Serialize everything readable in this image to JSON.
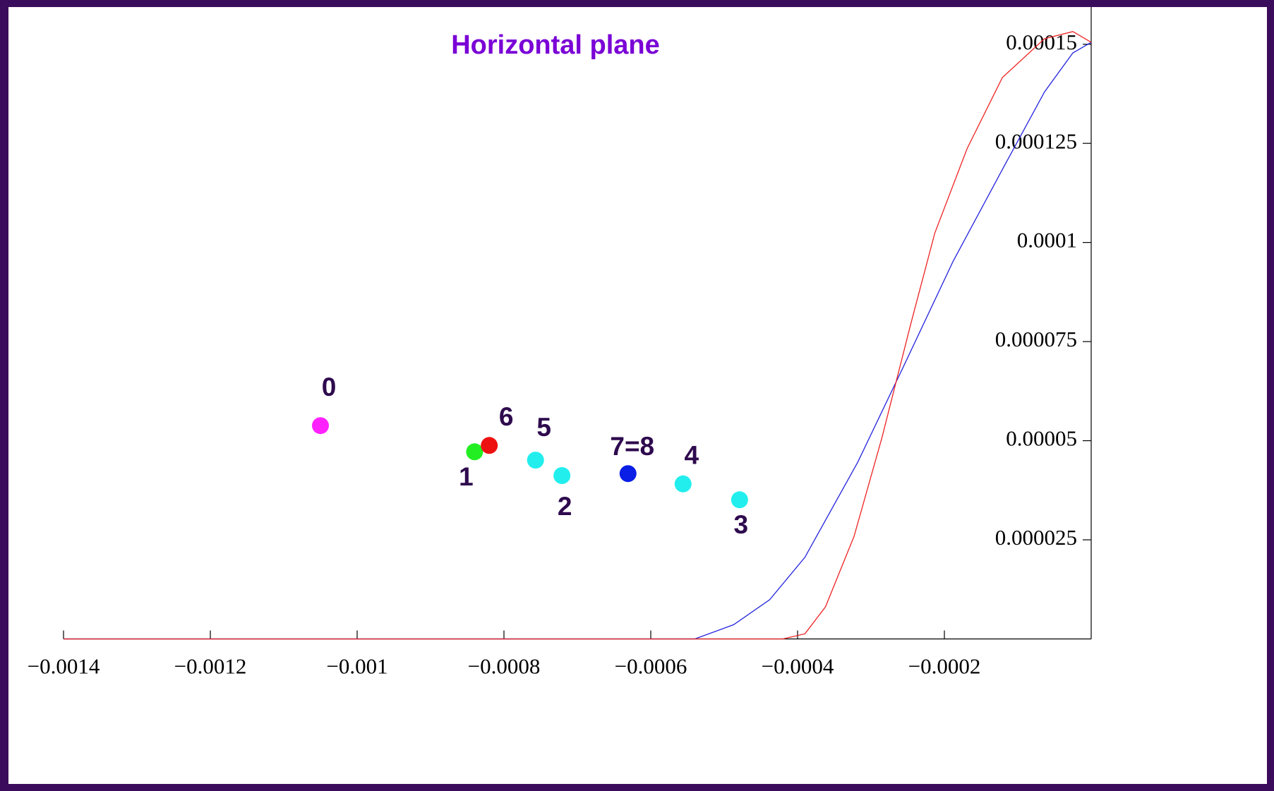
{
  "chart_data": {
    "type": "scatter",
    "title": "Horizontal plane",
    "xlim": [
      -0.0014,
      0
    ],
    "ylim": [
      0,
      0.00016
    ],
    "xticks": [
      {
        "value": -0.0014,
        "label": "−0.0014"
      },
      {
        "value": -0.0012,
        "label": "−0.0012"
      },
      {
        "value": -0.001,
        "label": "−0.001"
      },
      {
        "value": -0.0008,
        "label": "−0.0008"
      },
      {
        "value": -0.0006,
        "label": "−0.0006"
      },
      {
        "value": -0.0004,
        "label": "−0.0004"
      },
      {
        "value": -0.0002,
        "label": "−0.0002"
      }
    ],
    "yticks": [
      2.5e-05,
      5e-05,
      7.5e-05,
      0.0001,
      0.000125,
      0.00015
    ],
    "points": {
      "labels": [
        "0",
        "1",
        "6",
        "5",
        "2",
        "7=8",
        "4",
        "3"
      ],
      "colors": [
        "#ff22ff",
        "#22ee22",
        "#ee1111",
        "#22eeee",
        "#22eeee",
        "#0a1ee6",
        "#22eeee",
        "#22eeee"
      ],
      "x": [
        -0.00105,
        -0.00084,
        -0.00082,
        -0.000757,
        -0.000721,
        -0.000631,
        -0.000556,
        -0.000479
      ],
      "y": [
        5.38e-05,
        4.72e-05,
        4.88e-05,
        4.51e-05,
        4.12e-05,
        4.17e-05,
        3.91e-05,
        3.51e-05
      ]
    },
    "series": [
      {
        "color": "#2222dd",
        "x": [
          -0.0014,
          -0.00054,
          -0.000487,
          -0.000438,
          -0.00039,
          -0.000318,
          -0.000256,
          -0.000188,
          -0.000121,
          -6.35e-05,
          -2.5e-05,
          0
        ],
        "values": [
          0,
          0,
          3.6e-06,
          9.9e-06,
          2.06e-05,
          4.46e-05,
          6.86e-05,
          9.53e-05,
          0.0001184,
          0.000138,
          0.0001478,
          0.0001505
        ]
      },
      {
        "color": "#ee2222",
        "x": [
          -0.0014,
          -0.00042,
          -0.00039,
          -0.000362,
          -0.000323,
          -0.000285,
          -0.000246,
          -0.000213,
          -0.000169,
          -0.000121,
          -6.35e-05,
          -2.5e-05,
          0
        ],
        "values": [
          0,
          0,
          1.3e-06,
          8.1e-06,
          2.59e-05,
          5.08e-05,
          7.93e-05,
          0.0001024,
          0.0001237,
          0.0001416,
          0.0001514,
          0.0001532,
          0.0001505
        ]
      }
    ]
  }
}
